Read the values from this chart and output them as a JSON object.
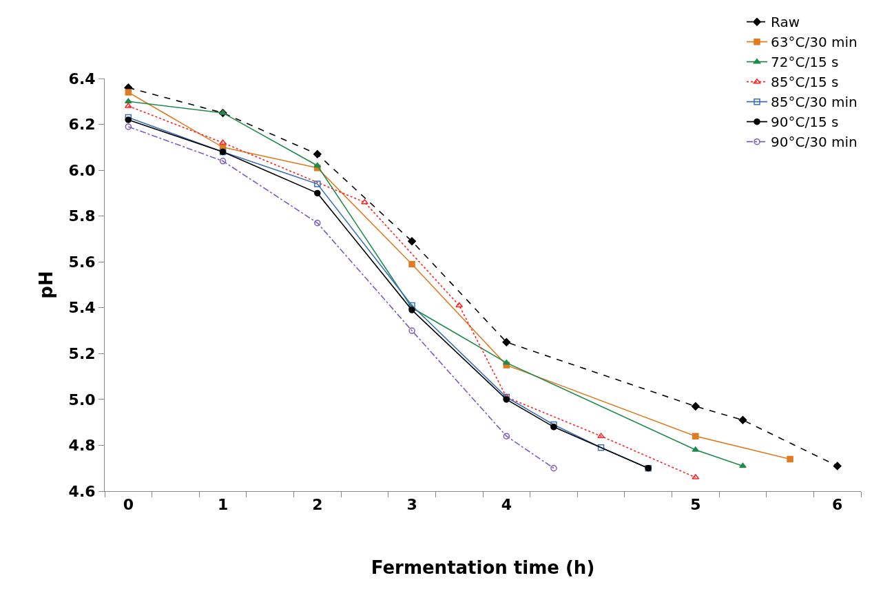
{
  "chart_data": {
    "type": "line",
    "xlabel": "Fermentation time (h)",
    "ylabel": "pH",
    "categories": [
      "0",
      null,
      "1",
      null,
      "2",
      null,
      "3",
      null,
      "4",
      null,
      null,
      null,
      "5",
      null,
      null,
      "6"
    ],
    "ylim": [
      4.6,
      6.4
    ],
    "yticks": [
      4.6,
      4.8,
      {
        "value": 5,
        "label": "5.0"
      },
      5.2,
      5.4,
      5.6,
      5.8,
      {
        "value": 6,
        "label": "6.0"
      },
      6.2,
      6.4
    ],
    "legend": "top right",
    "series": [
      {
        "name": "Raw",
        "color": "#000000",
        "marker": "diamond",
        "line_style": "dashed",
        "values": [
          6.36,
          null,
          6.25,
          null,
          6.07,
          null,
          5.69,
          null,
          5.25,
          null,
          null,
          null,
          4.97,
          4.91,
          null,
          4.71
        ]
      },
      {
        "name": "63°C/30 min",
        "color": "#e07b22",
        "marker": "square",
        "line_style": "solid",
        "values": [
          6.34,
          null,
          6.1,
          null,
          6.01,
          null,
          5.59,
          null,
          5.15,
          null,
          null,
          null,
          4.84,
          null,
          4.74,
          null
        ]
      },
      {
        "name": "72°C/15 s",
        "color": "#1f8a4c",
        "marker": "triangle",
        "line_style": "solid",
        "values": [
          6.3,
          null,
          6.25,
          null,
          6.02,
          null,
          5.4,
          null,
          5.16,
          null,
          null,
          null,
          4.78,
          4.71,
          null,
          null
        ]
      },
      {
        "name": "85°C/15 s",
        "color": "#ff2020",
        "marker": "triangle-open",
        "line_style": "dotted",
        "values": [
          6.28,
          null,
          6.12,
          null,
          null,
          5.86,
          null,
          5.41,
          5.01,
          null,
          4.84,
          null,
          4.66,
          null,
          null,
          null
        ]
      },
      {
        "name": "85°C/30 min",
        "color": "#3b6fb6",
        "marker": "square-open",
        "line_style": "solid",
        "values": [
          6.23,
          null,
          6.08,
          null,
          5.94,
          null,
          5.41,
          null,
          5.01,
          4.89,
          4.79,
          4.7,
          null,
          null,
          null,
          null
        ]
      },
      {
        "name": "90°C/15 s",
        "color": "#000000",
        "marker": "circle",
        "line_style": "solid",
        "values": [
          6.22,
          null,
          6.08,
          null,
          5.9,
          null,
          5.39,
          null,
          5.0,
          4.88,
          null,
          4.7,
          null,
          null,
          null,
          null
        ]
      },
      {
        "name": "90°C/30 min",
        "color": "#7a5cc4",
        "marker": "circle-open",
        "line_style": "dashdot",
        "values": [
          6.19,
          null,
          6.04,
          null,
          5.77,
          null,
          5.3,
          null,
          4.84,
          4.7,
          null,
          null,
          null,
          null,
          null,
          null
        ]
      }
    ]
  }
}
